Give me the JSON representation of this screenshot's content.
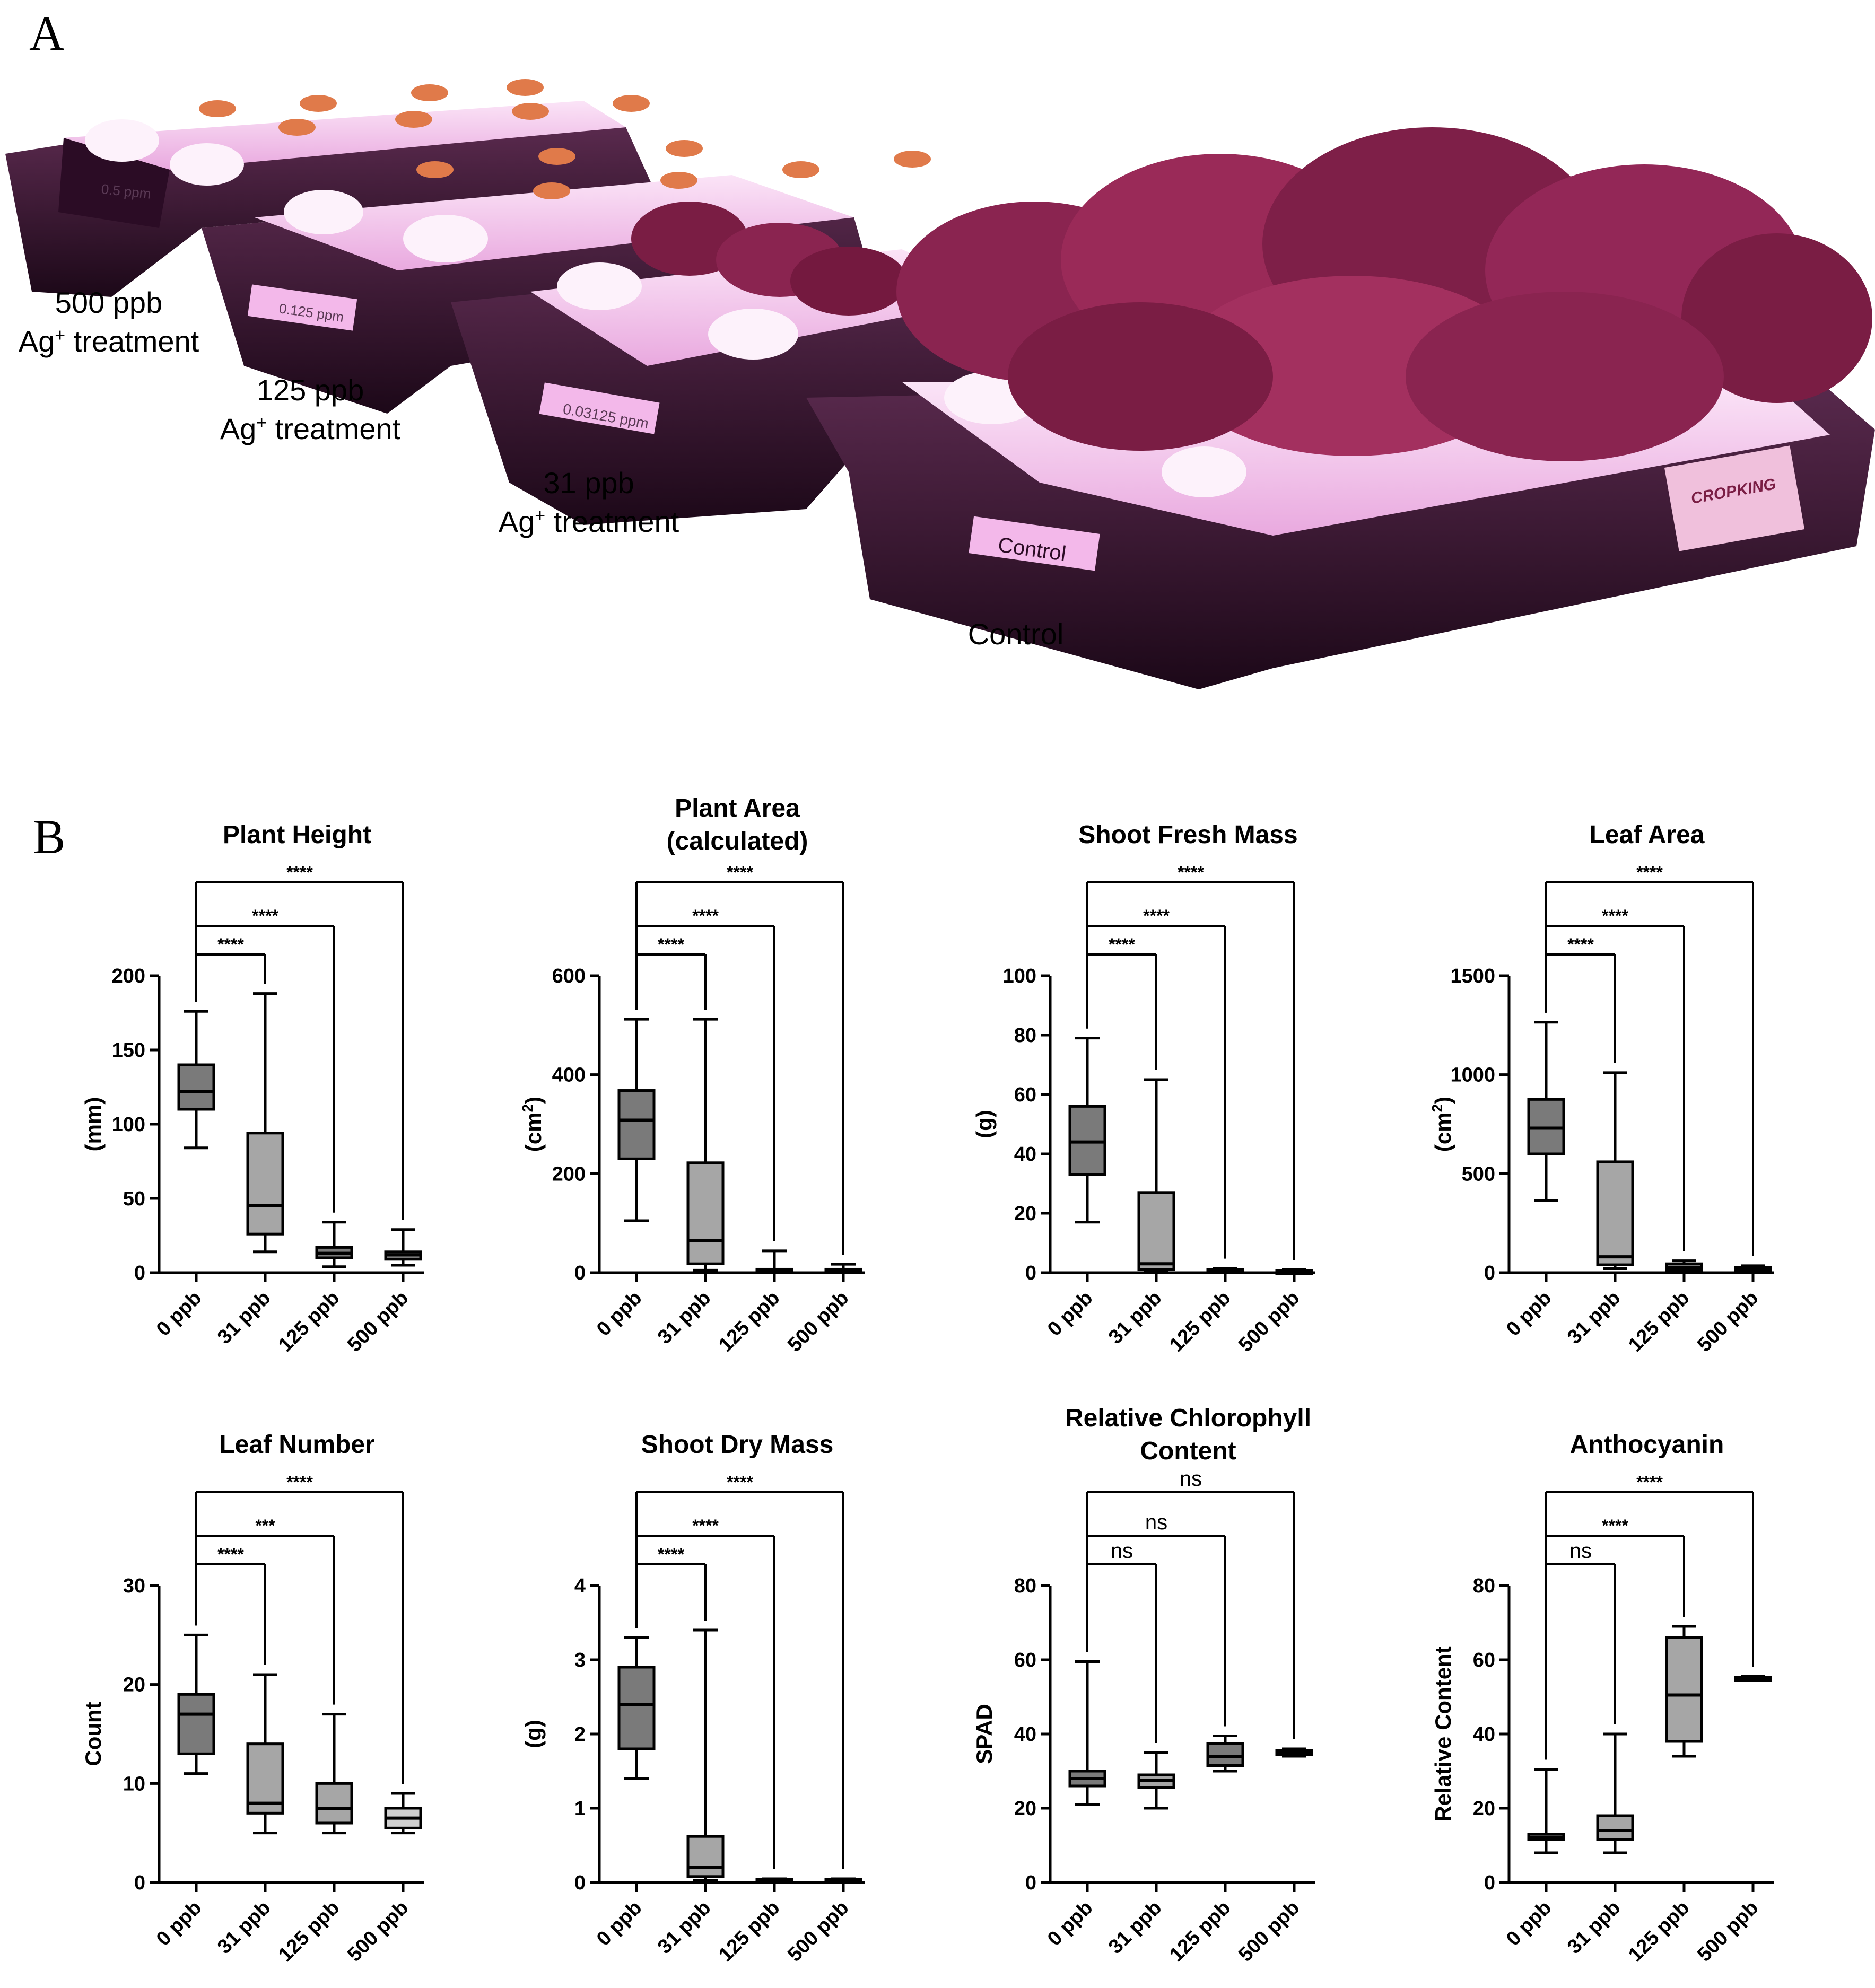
{
  "panels": {
    "a_letter": "A",
    "b_letter": "B"
  },
  "photo": {
    "labels": {
      "t500": {
        "value": "500 ppb",
        "ag": "Ag",
        "plus": "+",
        "rest": " treatment"
      },
      "t125": {
        "value": "125 ppb",
        "ag": "Ag",
        "plus": "+",
        "rest": " treatment"
      },
      "t31": {
        "value": "31 ppb",
        "ag": "Ag",
        "plus": "+",
        "rest": " treatment"
      },
      "control": "Control"
    },
    "tray_tags": [
      "0.5 ppm",
      "0.125 ppm",
      "0.03125 ppm",
      "Control"
    ],
    "brand": "CROPKING",
    "colors": {
      "light": "#f6c6f0",
      "tray": "#2a0f24",
      "leaf": "#8a1f4a"
    }
  },
  "chart_data": [
    {
      "type": "box",
      "title": [
        "Plant Height"
      ],
      "ylabel": "(mm)",
      "ylim": [
        0,
        200
      ],
      "yticks": [
        0,
        50,
        100,
        150,
        200
      ],
      "categories": [
        "0 ppb",
        "31 ppb",
        "125 ppb",
        "500 ppb"
      ],
      "boxes": [
        {
          "min": 84,
          "q1": 110,
          "median": 122,
          "q3": 140,
          "max": 176,
          "fill": "#7a7a7a"
        },
        {
          "min": 14,
          "q1": 26,
          "median": 45,
          "q3": 94,
          "max": 188,
          "fill": "#a6a6a6"
        },
        {
          "min": 4,
          "q1": 10,
          "median": 13,
          "q3": 17,
          "max": 34,
          "fill": "#7a7a7a"
        },
        {
          "min": 5,
          "q1": 9,
          "median": 12,
          "q3": 14,
          "max": 29,
          "fill": "#7a7a7a"
        }
      ],
      "comparisons": [
        {
          "to": 1,
          "label": "****"
        },
        {
          "to": 2,
          "label": "****"
        },
        {
          "to": 3,
          "label": "****"
        }
      ]
    },
    {
      "type": "box",
      "title": [
        "Plant Area",
        "(calculated)"
      ],
      "ylabel": "(cm2)",
      "ylim": [
        0,
        600
      ],
      "yticks": [
        0,
        200,
        400,
        600
      ],
      "categories": [
        "0 ppb",
        "31 ppb",
        "125 ppb",
        "500 ppb"
      ],
      "boxes": [
        {
          "min": 105,
          "q1": 230,
          "median": 308,
          "q3": 368,
          "max": 512,
          "fill": "#7a7a7a"
        },
        {
          "min": 5,
          "q1": 18,
          "median": 65,
          "q3": 222,
          "max": 512,
          "fill": "#a6a6a6"
        },
        {
          "min": 0,
          "q1": 2,
          "median": 4,
          "q3": 7,
          "max": 44,
          "fill": "#7a7a7a"
        },
        {
          "min": 0,
          "q1": 2,
          "median": 4,
          "q3": 7,
          "max": 17,
          "fill": "#7a7a7a"
        }
      ],
      "comparisons": [
        {
          "to": 1,
          "label": "****"
        },
        {
          "to": 2,
          "label": "****"
        },
        {
          "to": 3,
          "label": "****"
        }
      ]
    },
    {
      "type": "box",
      "title": [
        "Shoot Fresh Mass"
      ],
      "ylabel": "(g)",
      "ylim": [
        0,
        100
      ],
      "yticks": [
        0,
        20,
        40,
        60,
        80,
        100
      ],
      "categories": [
        "0 ppb",
        "31 ppb",
        "125 ppb",
        "500 ppb"
      ],
      "boxes": [
        {
          "min": 17,
          "q1": 33,
          "median": 44,
          "q3": 56,
          "max": 79,
          "fill": "#7a7a7a"
        },
        {
          "min": 0.5,
          "q1": 1,
          "median": 3,
          "q3": 27,
          "max": 65,
          "fill": "#a6a6a6"
        },
        {
          "min": 0,
          "q1": 0.2,
          "median": 0.5,
          "q3": 1,
          "max": 1.5,
          "fill": "#7a7a7a"
        },
        {
          "min": 0,
          "q1": 0.2,
          "median": 0.5,
          "q3": 0.8,
          "max": 1,
          "fill": "#7a7a7a"
        }
      ],
      "comparisons": [
        {
          "to": 1,
          "label": "****"
        },
        {
          "to": 2,
          "label": "****"
        },
        {
          "to": 3,
          "label": "****"
        }
      ]
    },
    {
      "type": "box",
      "title": [
        "Leaf Area"
      ],
      "ylabel": "(cm2)",
      "ylim": [
        0,
        1500
      ],
      "yticks": [
        0,
        500,
        1000,
        1500
      ],
      "categories": [
        "0 ppb",
        "31 ppb",
        "125 ppb",
        "500 ppb"
      ],
      "boxes": [
        {
          "min": 365,
          "q1": 600,
          "median": 730,
          "q3": 875,
          "max": 1265,
          "fill": "#7a7a7a"
        },
        {
          "min": 20,
          "q1": 40,
          "median": 80,
          "q3": 560,
          "max": 1010,
          "fill": "#a6a6a6"
        },
        {
          "min": 3,
          "q1": 12,
          "median": 25,
          "q3": 45,
          "max": 60,
          "fill": "#7a7a7a"
        },
        {
          "min": 3,
          "q1": 10,
          "median": 18,
          "q3": 28,
          "max": 35,
          "fill": "#7a7a7a"
        }
      ],
      "comparisons": [
        {
          "to": 1,
          "label": "****"
        },
        {
          "to": 2,
          "label": "****"
        },
        {
          "to": 3,
          "label": "****"
        }
      ]
    },
    {
      "type": "box",
      "title": [
        "Leaf Number"
      ],
      "ylabel": "Count",
      "ylim": [
        0,
        30
      ],
      "yticks": [
        0,
        10,
        20,
        30
      ],
      "categories": [
        "0 ppb",
        "31 ppb",
        "125 ppb",
        "500 ppb"
      ],
      "boxes": [
        {
          "min": 11,
          "q1": 13,
          "median": 17,
          "q3": 19,
          "max": 25,
          "fill": "#7a7a7a"
        },
        {
          "min": 5,
          "q1": 7,
          "median": 8,
          "q3": 14,
          "max": 21,
          "fill": "#a6a6a6"
        },
        {
          "min": 5,
          "q1": 6,
          "median": 7.5,
          "q3": 10,
          "max": 17,
          "fill": "#a6a6a6"
        },
        {
          "min": 5,
          "q1": 5.5,
          "median": 6.5,
          "q3": 7.5,
          "max": 9,
          "fill": "#d0d0d0"
        }
      ],
      "comparisons": [
        {
          "to": 1,
          "label": "****"
        },
        {
          "to": 2,
          "label": "***"
        },
        {
          "to": 3,
          "label": "****"
        }
      ]
    },
    {
      "type": "box",
      "title": [
        "Shoot Dry Mass"
      ],
      "ylabel": "(g)",
      "ylim": [
        0,
        4
      ],
      "yticks": [
        0,
        1,
        2,
        3,
        4
      ],
      "categories": [
        "0 ppb",
        "31 ppb",
        "125 ppb",
        "500 ppb"
      ],
      "boxes": [
        {
          "min": 1.4,
          "q1": 1.8,
          "median": 2.4,
          "q3": 2.9,
          "max": 3.3,
          "fill": "#7a7a7a"
        },
        {
          "min": 0.03,
          "q1": 0.08,
          "median": 0.2,
          "q3": 0.62,
          "max": 3.4,
          "fill": "#a6a6a6"
        },
        {
          "min": 0,
          "q1": 0.01,
          "median": 0.02,
          "q3": 0.04,
          "max": 0.05,
          "fill": "#7a7a7a"
        },
        {
          "min": 0,
          "q1": 0.01,
          "median": 0.02,
          "q3": 0.04,
          "max": 0.05,
          "fill": "#7a7a7a"
        }
      ],
      "comparisons": [
        {
          "to": 1,
          "label": "****"
        },
        {
          "to": 2,
          "label": "****"
        },
        {
          "to": 3,
          "label": "****"
        }
      ]
    },
    {
      "type": "box",
      "title": [
        "Relative Chlorophyll",
        "Content"
      ],
      "ylabel": "SPAD",
      "ylim": [
        0,
        80
      ],
      "yticks": [
        0,
        20,
        40,
        60,
        80
      ],
      "categories": [
        "0 ppb",
        "31 ppb",
        "125 ppb",
        "500 ppb"
      ],
      "boxes": [
        {
          "min": 21,
          "q1": 26,
          "median": 28,
          "q3": 30,
          "max": 59.5,
          "fill": "#7a7a7a"
        },
        {
          "min": 20,
          "q1": 25.5,
          "median": 27.5,
          "q3": 29,
          "max": 35,
          "fill": "#a6a6a6"
        },
        {
          "min": 30,
          "q1": 31.5,
          "median": 34,
          "q3": 37.5,
          "max": 39.5,
          "fill": "#7a7a7a"
        },
        {
          "min": 34,
          "q1": 34.5,
          "median": 35,
          "q3": 35.5,
          "max": 36,
          "fill": "#7a7a7a"
        }
      ],
      "comparisons": [
        {
          "to": 1,
          "label": "ns"
        },
        {
          "to": 2,
          "label": "ns"
        },
        {
          "to": 3,
          "label": "ns"
        }
      ]
    },
    {
      "type": "box",
      "title": [
        "Anthocyanin"
      ],
      "ylabel": "Relative Content",
      "ylim": [
        0,
        80
      ],
      "yticks": [
        0,
        20,
        40,
        60,
        80
      ],
      "categories": [
        "0 ppb",
        "31 ppb",
        "125 ppb",
        "500 ppb"
      ],
      "boxes": [
        {
          "min": 8,
          "q1": 11.5,
          "median": 12,
          "q3": 13,
          "max": 30.5,
          "fill": "#7a7a7a"
        },
        {
          "min": 8,
          "q1": 11.5,
          "median": 14,
          "q3": 18,
          "max": 40,
          "fill": "#a6a6a6"
        },
        {
          "min": 34,
          "q1": 38,
          "median": 50.5,
          "q3": 66,
          "max": 69,
          "fill": "#a6a6a6"
        },
        {
          "min": 54.5,
          "q1": 54.8,
          "median": 55,
          "q3": 55.3,
          "max": 55.5,
          "fill": "#7a7a7a"
        }
      ],
      "comparisons": [
        {
          "to": 1,
          "label": "ns"
        },
        {
          "to": 2,
          "label": "****"
        },
        {
          "to": 3,
          "label": "****"
        }
      ]
    }
  ]
}
